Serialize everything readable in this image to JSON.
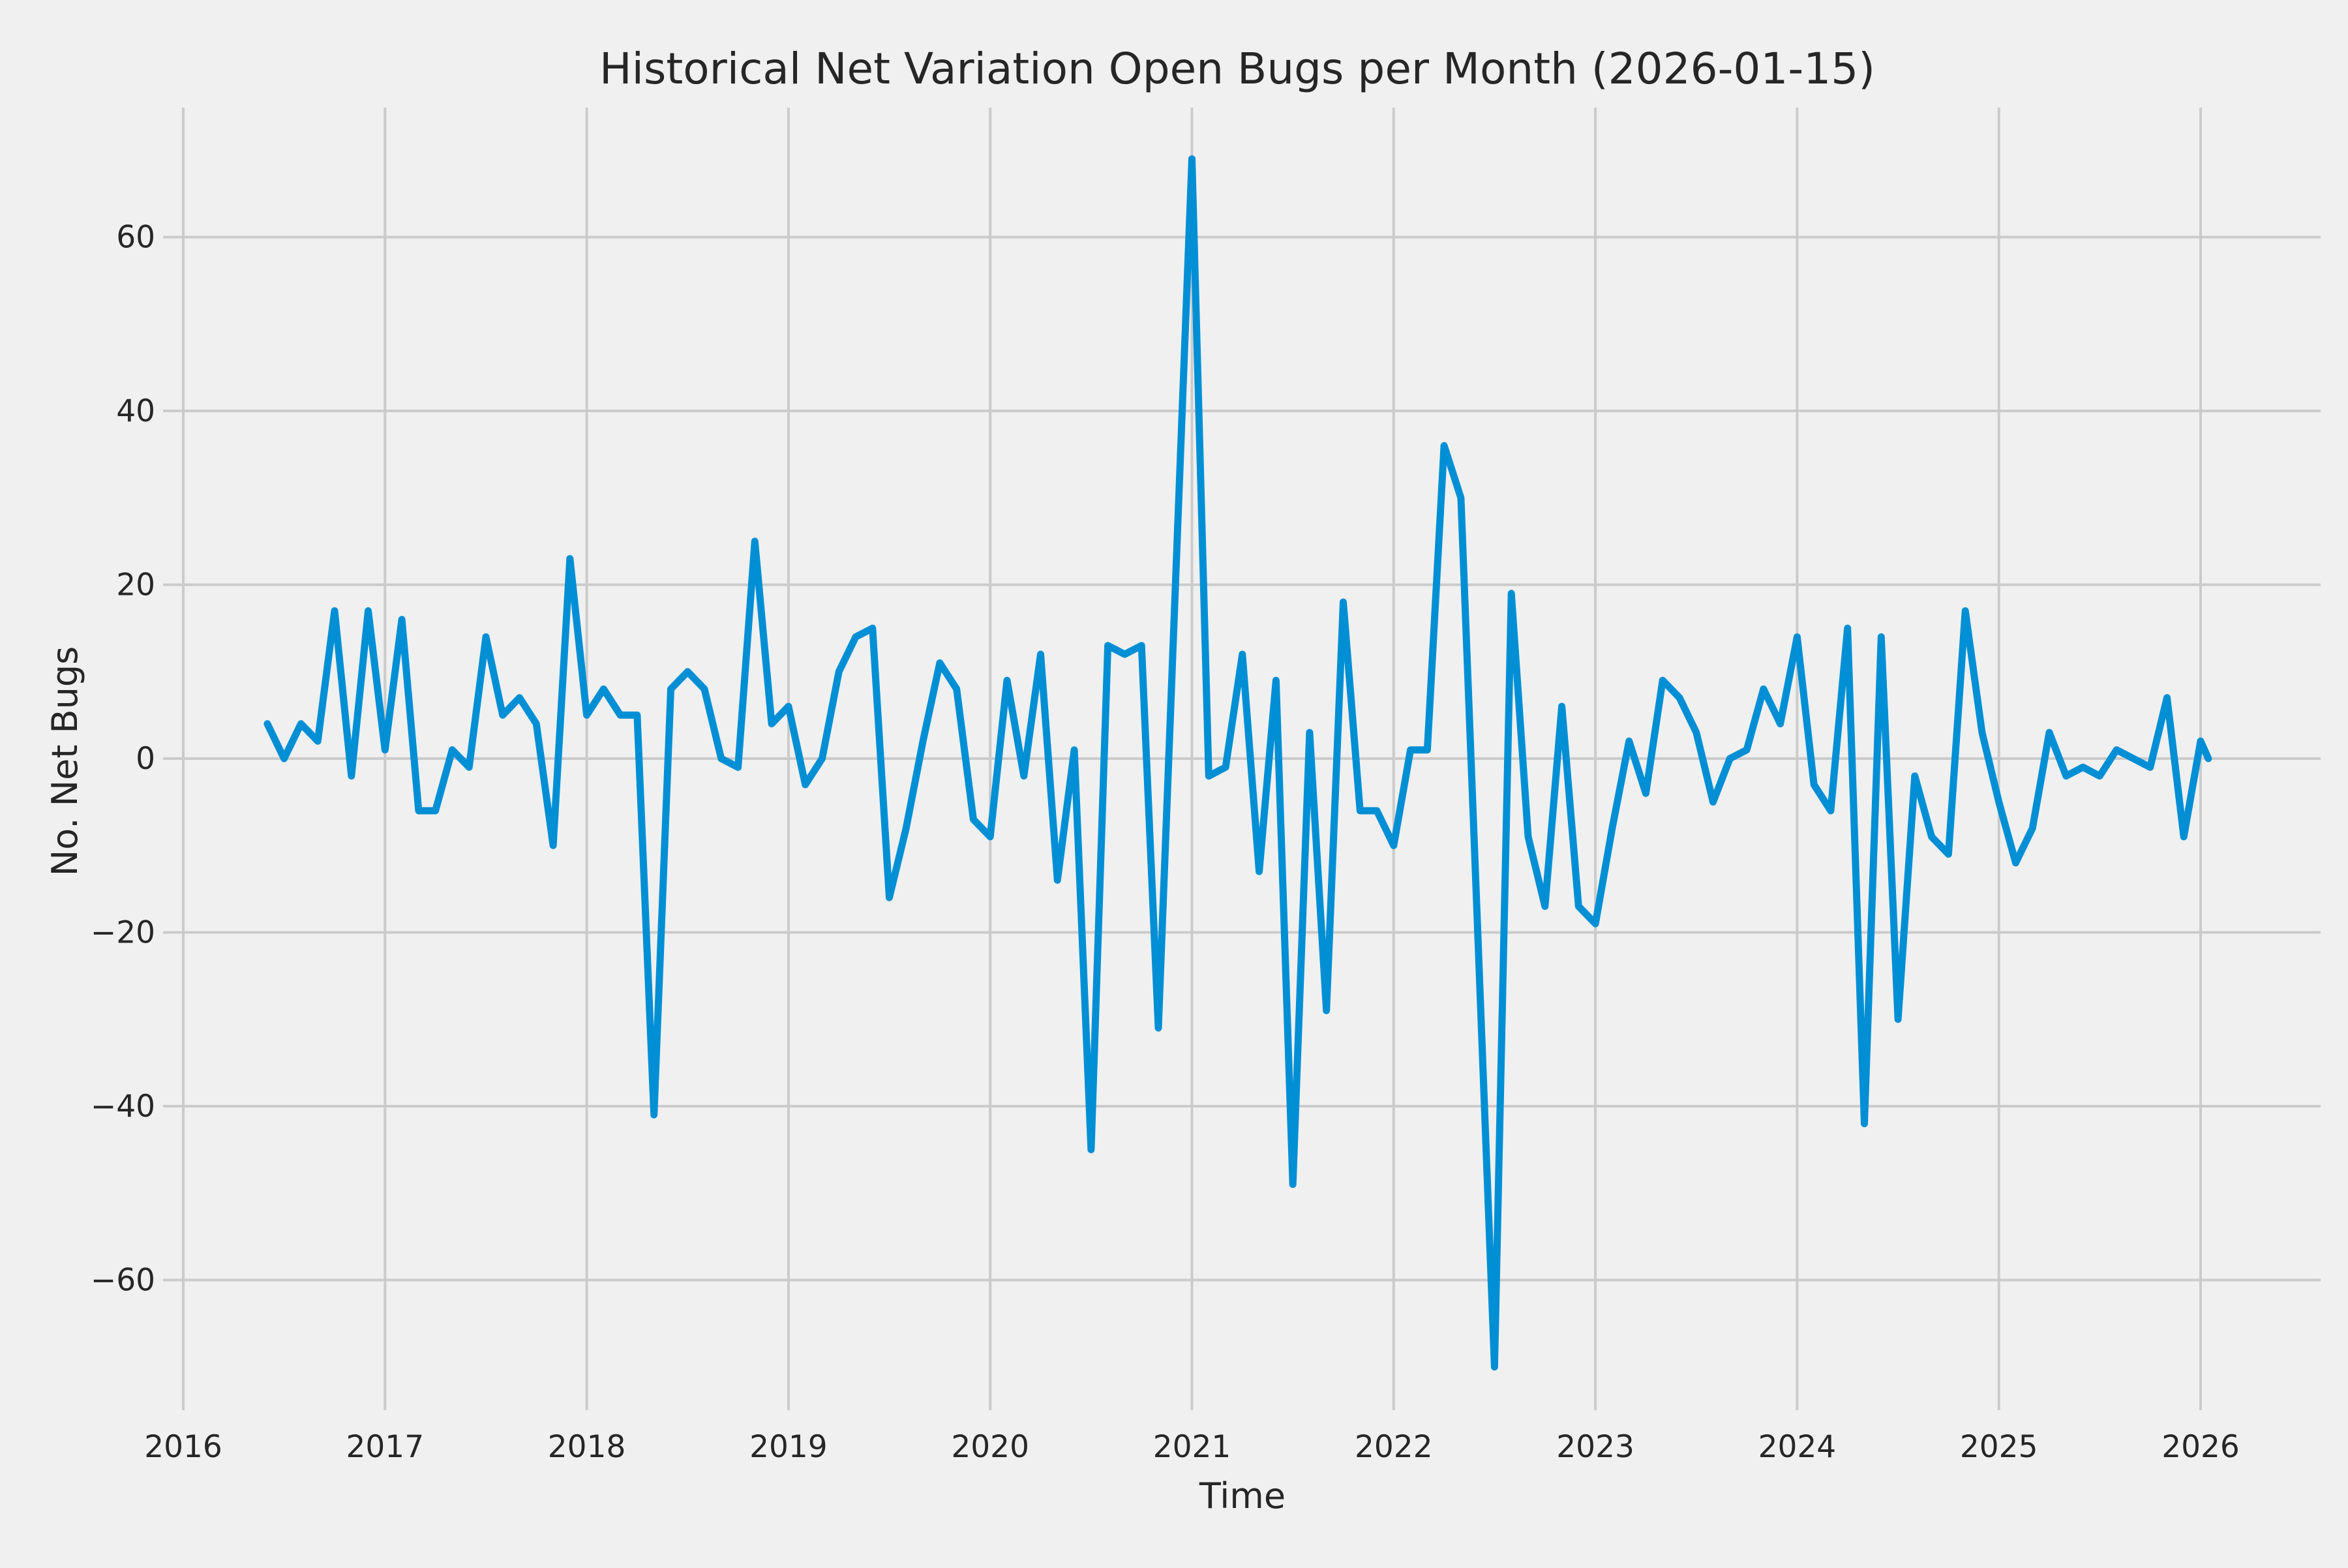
{
  "title": "Historical Net Variation Open Bugs per Month (2026-01-15)",
  "axes": {
    "xlabel": "Time",
    "ylabel": "No. Net Bugs",
    "x_tick_labels": [
      "2016",
      "2017",
      "2018",
      "2019",
      "2020",
      "2021",
      "2022",
      "2023",
      "2024",
      "2025",
      "2026"
    ],
    "y_tick_labels": [
      "−60",
      "−40",
      "−20",
      "0",
      "20",
      "40",
      "60"
    ]
  },
  "colors": {
    "background": "#f0f0f0",
    "grid": "#cbcbcb",
    "line": "#008fd5",
    "text": "#262626"
  },
  "chart_data": {
    "type": "line",
    "title": "Historical Net Variation Open Bugs per Month (2026-01-15)",
    "xlabel": "Time",
    "ylabel": "No. Net Bugs",
    "grid": true,
    "legend": false,
    "x_ticks": [
      2016,
      2017,
      2018,
      2019,
      2020,
      2021,
      2022,
      2023,
      2024,
      2025,
      2026
    ],
    "y_ticks": [
      -60,
      -40,
      -20,
      0,
      20,
      40,
      60
    ],
    "ylim": [
      -75,
      75
    ],
    "xlim": [
      "2015-12-01",
      "2026-08-01"
    ],
    "x": [
      "2016-06",
      "2016-07",
      "2016-08",
      "2016-09",
      "2016-10",
      "2016-11",
      "2016-12",
      "2017-01",
      "2017-02",
      "2017-03",
      "2017-04",
      "2017-05",
      "2017-06",
      "2017-07",
      "2017-08",
      "2017-09",
      "2017-10",
      "2017-11",
      "2017-12",
      "2018-01",
      "2018-02",
      "2018-03",
      "2018-04",
      "2018-05",
      "2018-06",
      "2018-07",
      "2018-08",
      "2018-09",
      "2018-10",
      "2018-11",
      "2018-12",
      "2019-01",
      "2019-02",
      "2019-03",
      "2019-04",
      "2019-05",
      "2019-06",
      "2019-07",
      "2019-08",
      "2019-09",
      "2019-10",
      "2019-11",
      "2019-12",
      "2020-01",
      "2020-02",
      "2020-03",
      "2020-04",
      "2020-05",
      "2020-06",
      "2020-07",
      "2020-08",
      "2020-09",
      "2020-10",
      "2020-11",
      "2020-12",
      "2021-01",
      "2021-02",
      "2021-03",
      "2021-04",
      "2021-05",
      "2021-06",
      "2021-07",
      "2021-08",
      "2021-09",
      "2021-10",
      "2021-11",
      "2021-12",
      "2022-01",
      "2022-02",
      "2022-03",
      "2022-04",
      "2022-05",
      "2022-06",
      "2022-07",
      "2022-08",
      "2022-09",
      "2022-10",
      "2022-11",
      "2022-12",
      "2023-01",
      "2023-02",
      "2023-03",
      "2023-04",
      "2023-05",
      "2023-06",
      "2023-07",
      "2023-08",
      "2023-09",
      "2023-10",
      "2023-11",
      "2023-12",
      "2024-01",
      "2024-02",
      "2024-03",
      "2024-04",
      "2024-05",
      "2024-06",
      "2024-07",
      "2024-08",
      "2024-09",
      "2024-10",
      "2024-11",
      "2024-12",
      "2025-01",
      "2025-02",
      "2025-03",
      "2025-04",
      "2025-05",
      "2025-06",
      "2025-07",
      "2025-08",
      "2025-09",
      "2025-10",
      "2025-11",
      "2025-12",
      "2026-01",
      "2026-01-15"
    ],
    "values": [
      4,
      0,
      4,
      2,
      17,
      -2,
      17,
      1,
      16,
      -6,
      -6,
      1,
      -1,
      14,
      5,
      7,
      4,
      -10,
      23,
      5,
      8,
      5,
      5,
      -41,
      8,
      10,
      8,
      0,
      -1,
      25,
      4,
      6,
      -3,
      0,
      10,
      14,
      15,
      -16,
      -8,
      2,
      11,
      8,
      -7,
      -9,
      9,
      -2,
      12,
      -14,
      1,
      -45,
      13,
      12,
      13,
      -31,
      19,
      69,
      -2,
      -1,
      12,
      -13,
      9,
      -49,
      3,
      -29,
      18,
      -6,
      -6,
      -10,
      1,
      1,
      36,
      30,
      -20,
      -70,
      19,
      -9,
      -17,
      6,
      -17,
      -19,
      -8,
      2,
      -4,
      9,
      7,
      3,
      -5,
      0,
      1,
      8,
      4,
      14,
      -3,
      -6,
      15,
      -42,
      14,
      -30,
      -2,
      -9,
      -11,
      17,
      3,
      -5,
      -12,
      -8,
      3,
      -2,
      -1,
      -2,
      1,
      0,
      -1,
      7,
      -9,
      2,
      0
    ]
  }
}
